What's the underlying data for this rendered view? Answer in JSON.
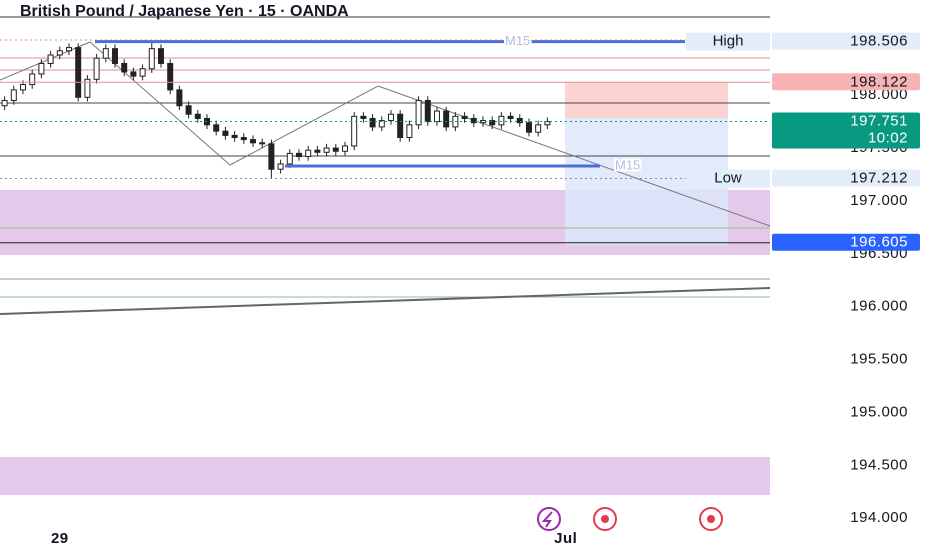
{
  "chart_data": {
    "type": "candlestick",
    "title": "British Pound / Japanese Yen · 15 · OANDA",
    "open": [
      197.9,
      197.95,
      198.05,
      198.1,
      198.2,
      198.3,
      198.38,
      198.42,
      198.45,
      197.98,
      198.15,
      198.35,
      198.44,
      198.3,
      198.22,
      198.18,
      198.25,
      198.44,
      198.3,
      198.05,
      197.9,
      197.82,
      197.78,
      197.72,
      197.66,
      197.62,
      197.6,
      197.58,
      197.55,
      197.54,
      197.3,
      197.35,
      197.45,
      197.42,
      197.48,
      197.46,
      197.5,
      197.47,
      197.52,
      197.8,
      197.78,
      197.7,
      197.76,
      197.82,
      197.6,
      197.72,
      197.95,
      197.75,
      197.85,
      197.7,
      197.8,
      197.78,
      197.74,
      197.76,
      197.72,
      197.8,
      197.78,
      197.74,
      197.65,
      197.72
    ],
    "high": [
      197.99,
      198.09,
      198.14,
      198.24,
      198.34,
      198.42,
      198.46,
      198.49,
      198.49,
      198.19,
      198.39,
      198.48,
      198.48,
      198.34,
      198.26,
      198.29,
      198.5,
      198.48,
      198.34,
      198.09,
      197.94,
      197.86,
      197.82,
      197.76,
      197.7,
      197.66,
      197.64,
      197.62,
      197.59,
      197.58,
      197.39,
      197.49,
      197.49,
      197.52,
      197.52,
      197.54,
      197.54,
      197.56,
      197.84,
      197.84,
      197.82,
      197.8,
      197.86,
      197.86,
      197.76,
      197.99,
      197.99,
      197.89,
      197.89,
      197.84,
      197.84,
      197.82,
      197.8,
      197.8,
      197.84,
      197.84,
      197.82,
      197.78,
      197.76,
      197.79
    ],
    "low": [
      197.86,
      197.91,
      198.01,
      198.06,
      198.16,
      198.26,
      198.34,
      198.38,
      197.94,
      197.94,
      198.11,
      198.31,
      198.26,
      198.18,
      198.14,
      198.14,
      198.21,
      198.26,
      198.01,
      197.86,
      197.78,
      197.74,
      197.68,
      197.62,
      197.58,
      197.56,
      197.54,
      197.51,
      197.5,
      197.21,
      197.26,
      197.31,
      197.38,
      197.38,
      197.42,
      197.42,
      197.43,
      197.43,
      197.48,
      197.74,
      197.66,
      197.66,
      197.72,
      197.56,
      197.56,
      197.68,
      197.71,
      197.71,
      197.66,
      197.66,
      197.74,
      197.7,
      197.7,
      197.68,
      197.68,
      197.74,
      197.7,
      197.61,
      197.61,
      197.68
    ],
    "close": [
      197.95,
      198.05,
      198.1,
      198.2,
      198.3,
      198.38,
      198.42,
      198.45,
      197.98,
      198.15,
      198.35,
      198.44,
      198.3,
      198.22,
      198.18,
      198.25,
      198.44,
      198.3,
      198.05,
      197.9,
      197.82,
      197.78,
      197.72,
      197.66,
      197.62,
      197.6,
      197.58,
      197.55,
      197.54,
      197.3,
      197.35,
      197.45,
      197.42,
      197.48,
      197.46,
      197.5,
      197.47,
      197.52,
      197.8,
      197.78,
      197.7,
      197.76,
      197.82,
      197.6,
      197.72,
      197.95,
      197.75,
      197.85,
      197.7,
      197.8,
      197.78,
      197.74,
      197.76,
      197.72,
      197.8,
      197.78,
      197.74,
      197.65,
      197.72,
      197.75
    ],
    "color": "#222222",
    "xlim": [
      -0.5,
      83.2
    ],
    "xticks": [
      {
        "value": 6,
        "label": "29"
      },
      {
        "value": 61,
        "label": "Jul"
      }
    ],
    "ylim": [
      193.7,
      198.9
    ],
    "yticks": [
      {
        "value": 198,
        "label": "198.000"
      },
      {
        "value": 197.5,
        "label": "197.500"
      },
      {
        "value": 197,
        "label": "197.000"
      },
      {
        "value": 196.5,
        "label": "196.500"
      },
      {
        "value": 196,
        "label": "196.000"
      },
      {
        "value": 195.5,
        "label": "195.500"
      },
      {
        "value": 195,
        "label": "195.000"
      },
      {
        "value": 194.5,
        "label": "194.500"
      },
      {
        "value": 194,
        "label": "194.000"
      }
    ],
    "levels": [
      {
        "value": 198.506,
        "color": "#4b6fd6",
        "label": "High",
        "tag": "M15",
        "badge_color": "#e3ecf9"
      },
      {
        "value": 198.122,
        "color": "#e88b8b",
        "badge_color": "#f7b3b3"
      },
      {
        "value": 197.751,
        "color": "#089981",
        "badge_color": "#089981",
        "countdown": "10:02"
      },
      {
        "value": 197.33,
        "color": "#4b6fd6",
        "tag": "M15"
      },
      {
        "value": 197.212,
        "color": "#8a8f99",
        "label": "Low",
        "badge_color": "#e3ecf9"
      },
      {
        "value": 196.605,
        "color": "#222222",
        "badge_color": "#2962ff"
      }
    ]
  }
}
